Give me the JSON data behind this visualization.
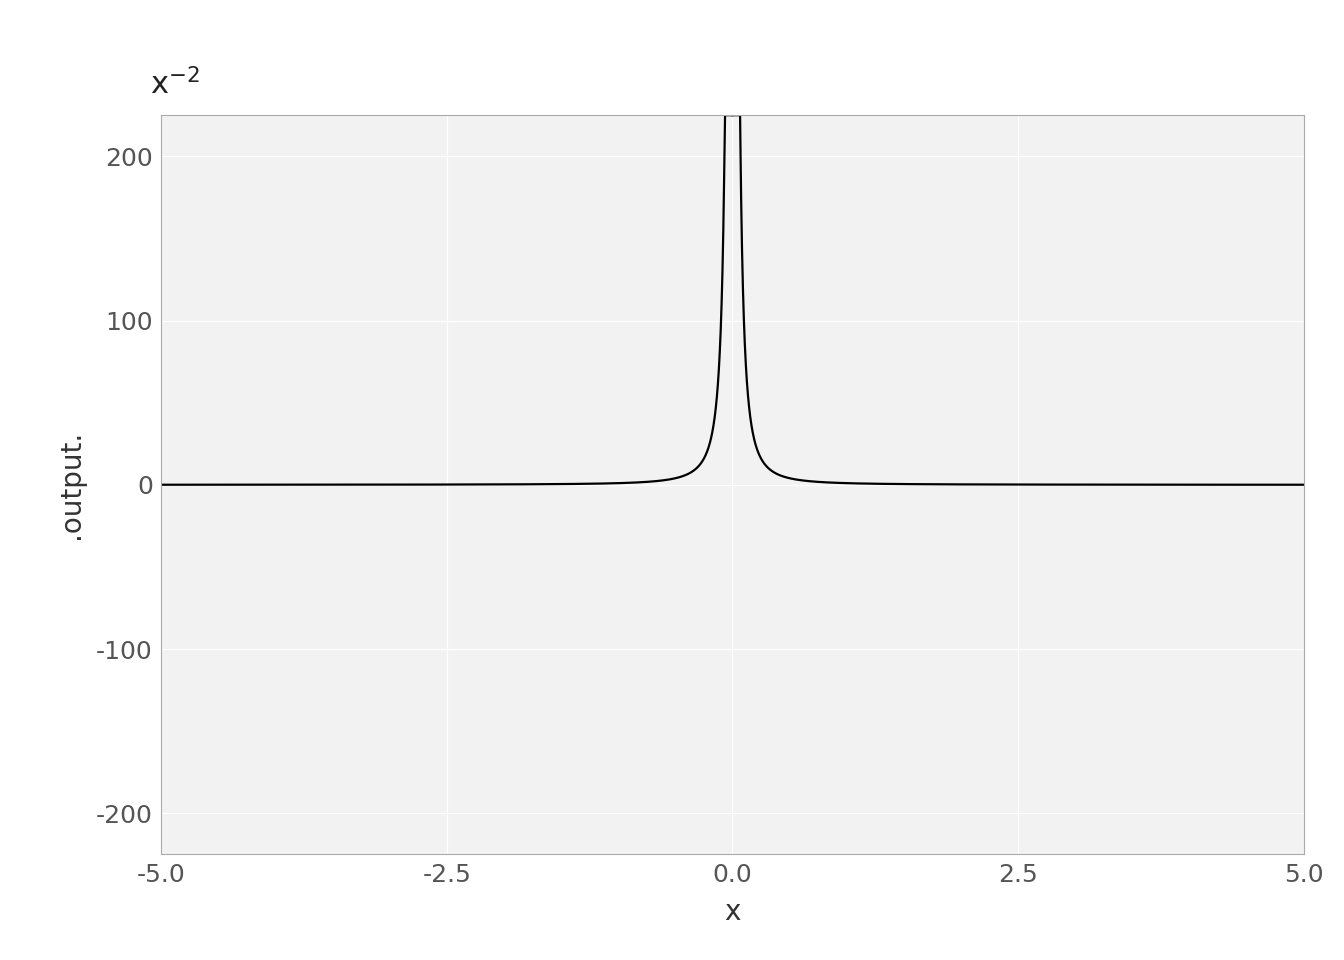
{
  "title": "$\\mathregular{x^{-2}}$",
  "xlabel": "x",
  "ylabel": ".output.",
  "xlim": [
    -5.0,
    5.0
  ],
  "ylim": [
    -225,
    225
  ],
  "yticks": [
    -200,
    -100,
    0,
    100,
    200
  ],
  "xticks": [
    -5.0,
    -2.5,
    0.0,
    2.5,
    5.0
  ],
  "xtick_labels": [
    "-5.0",
    "-2.5",
    "0.0",
    "2.5",
    "5.0"
  ],
  "ytick_labels": [
    "-200",
    "-100",
    "0",
    "100",
    "200"
  ],
  "line_color": "#000000",
  "line_width": 1.6,
  "background_color": "#ffffff",
  "plot_bg_color": "#f2f2f2",
  "grid_color": "#ffffff",
  "exponent": -2,
  "title_fontsize": 22,
  "axis_label_fontsize": 20,
  "tick_fontsize": 18
}
